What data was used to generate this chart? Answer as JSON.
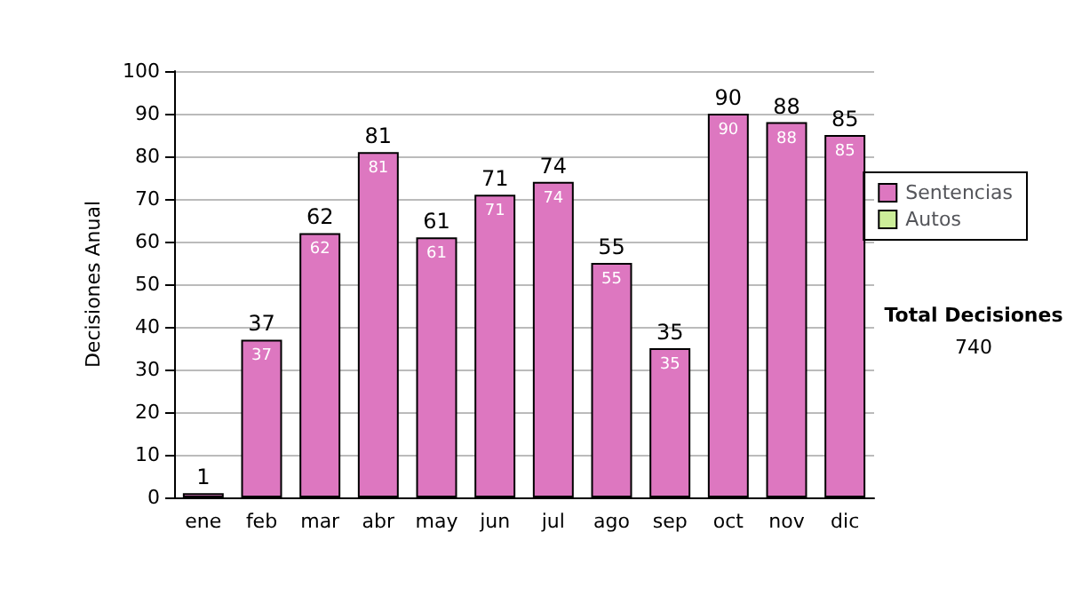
{
  "chart_data": {
    "type": "bar",
    "stacked": true,
    "ylabel": "Decisiones Anual",
    "categories": [
      "ene",
      "feb",
      "mar",
      "abr",
      "may",
      "jun",
      "jul",
      "ago",
      "sep",
      "oct",
      "nov",
      "dic"
    ],
    "series": [
      {
        "name": "Sentencias",
        "color": "#dd77c0",
        "values": [
          1,
          37,
          62,
          81,
          61,
          71,
          74,
          55,
          35,
          90,
          88,
          85
        ],
        "value_labels": [
          null,
          "37",
          "62",
          "81",
          "61",
          "71",
          "74",
          "55",
          "35",
          "90",
          "88",
          "85"
        ]
      },
      {
        "name": "Autos",
        "color": "#ccee99",
        "values": [
          null,
          null,
          null,
          null,
          null,
          null,
          null,
          null,
          null,
          null,
          null,
          null
        ]
      }
    ],
    "totals": [
      "1",
      "37",
      "62",
      "81",
      "61",
      "71",
      "74",
      "55",
      "35",
      "90",
      "88",
      "85"
    ],
    "ylim": [
      0,
      100
    ],
    "yticks": [
      0,
      10,
      20,
      30,
      40,
      50,
      60,
      70,
      80,
      90,
      100
    ],
    "grid": "y",
    "legend": "right",
    "annotations": [
      "Total Decisiones",
      "740"
    ]
  }
}
